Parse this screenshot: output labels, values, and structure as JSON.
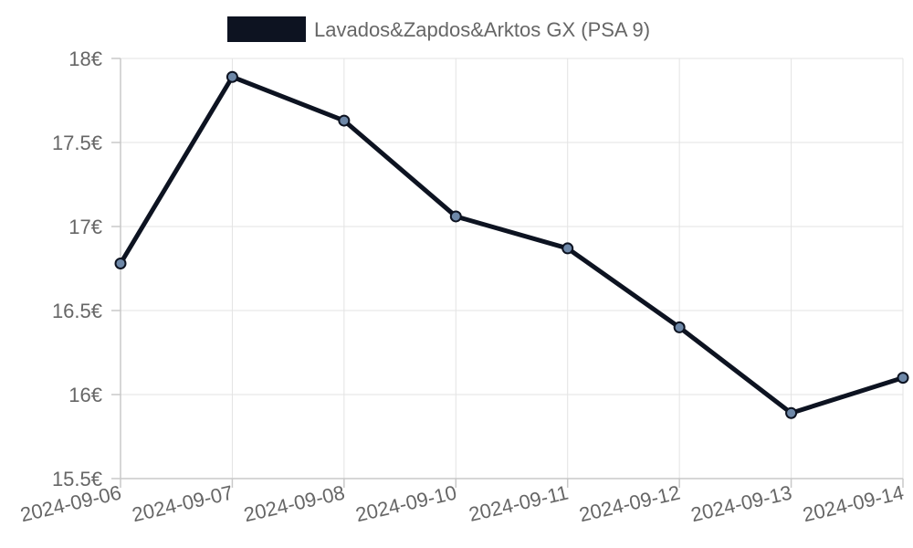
{
  "chart_data": {
    "type": "line",
    "title": "",
    "xlabel": "",
    "ylabel": "",
    "x": [
      "2024-09-06",
      "2024-09-07",
      "2024-09-08",
      "2024-09-10",
      "2024-09-11",
      "2024-09-12",
      "2024-09-13",
      "2024-09-14"
    ],
    "series": [
      {
        "name": "Lavados&Zapdos&Arktos GX (PSA 9)",
        "values": [
          16.78,
          17.89,
          17.63,
          17.06,
          16.87,
          16.4,
          15.89,
          16.1
        ],
        "color": "#0d1321",
        "marker_color": "#6e88a8"
      }
    ],
    "ylim": [
      15.5,
      18
    ],
    "yticks": [
      15.5,
      16,
      16.5,
      17,
      17.5,
      18
    ],
    "ytick_labels": [
      "15.5€",
      "16€",
      "16.5€",
      "17€",
      "17.5€",
      "18€"
    ],
    "grid": true,
    "legend": "top-center"
  }
}
